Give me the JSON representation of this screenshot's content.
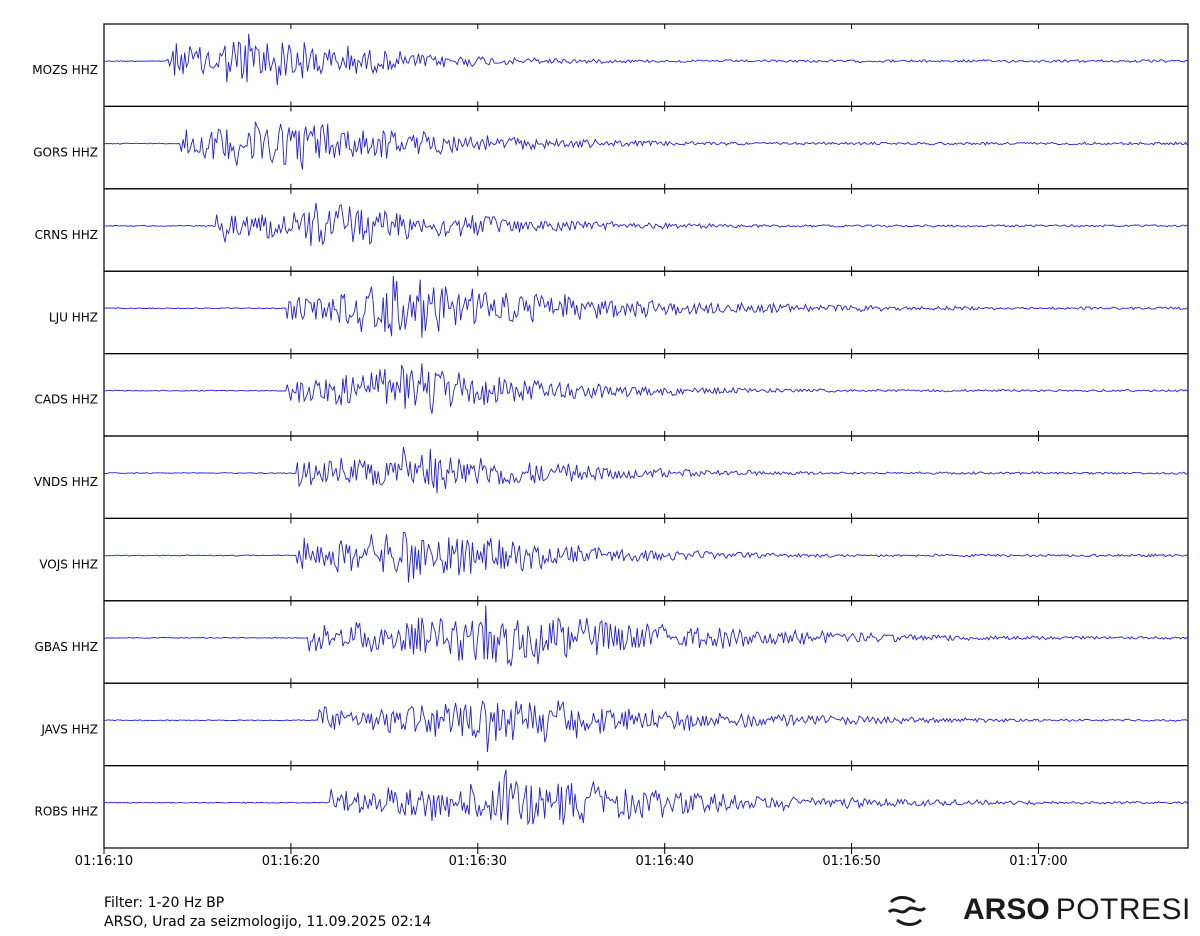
{
  "chart_data": {
    "type": "line",
    "title": "",
    "xlabel": "",
    "ylabel": "",
    "x_start": "01:16:10",
    "x_end": "01:17:08",
    "x_ticks": [
      "01:16:10",
      "01:16:20",
      "01:16:30",
      "01:16:40",
      "01:16:50",
      "01:17:00"
    ],
    "grid": false,
    "trace_color": "#1f1fe6",
    "series": [
      {
        "name": "MOZS HHZ",
        "onset": "01:16:13.4",
        "peak": "01:16:17.0",
        "amplitude": 1.0,
        "duration": 20
      },
      {
        "name": "GORS HHZ",
        "onset": "01:16:14.1",
        "peak": "01:16:18.0",
        "amplitude": 1.0,
        "duration": 24
      },
      {
        "name": "CRNS HHZ",
        "onset": "01:16:16.0",
        "peak": "01:16:21.0",
        "amplitude": 0.85,
        "duration": 24
      },
      {
        "name": "LJU HHZ",
        "onset": "01:16:19.8",
        "peak": "01:16:25.0",
        "amplitude": 1.0,
        "duration": 30
      },
      {
        "name": "CADS HHZ",
        "onset": "01:16:19.8",
        "peak": "01:16:25.5",
        "amplitude": 0.9,
        "duration": 22
      },
      {
        "name": "VNDS HHZ",
        "onset": "01:16:20.3",
        "peak": "01:16:26.0",
        "amplitude": 0.85,
        "duration": 22
      },
      {
        "name": "VOJS HHZ",
        "onset": "01:16:20.3",
        "peak": "01:16:26.0",
        "amplitude": 0.95,
        "duration": 22
      },
      {
        "name": "GBAS HHZ",
        "onset": "01:16:20.9",
        "peak": "01:16:30.0",
        "amplitude": 0.95,
        "duration": 32
      },
      {
        "name": "JAVS HHZ",
        "onset": "01:16:21.5",
        "peak": "01:16:30.0",
        "amplitude": 0.85,
        "duration": 30
      },
      {
        "name": "ROBS HHZ",
        "onset": "01:16:22.0",
        "peak": "01:16:31.0",
        "amplitude": 0.9,
        "duration": 30
      }
    ]
  },
  "footer": {
    "filter": "Filter: 1-20 Hz BP",
    "source": "ARSO, Urad za seizmologijo, 11.09.2025  02:14"
  },
  "brand": {
    "strong": "ARSO",
    "light": "POTRESI",
    "icon": "wave-logo-icon"
  }
}
